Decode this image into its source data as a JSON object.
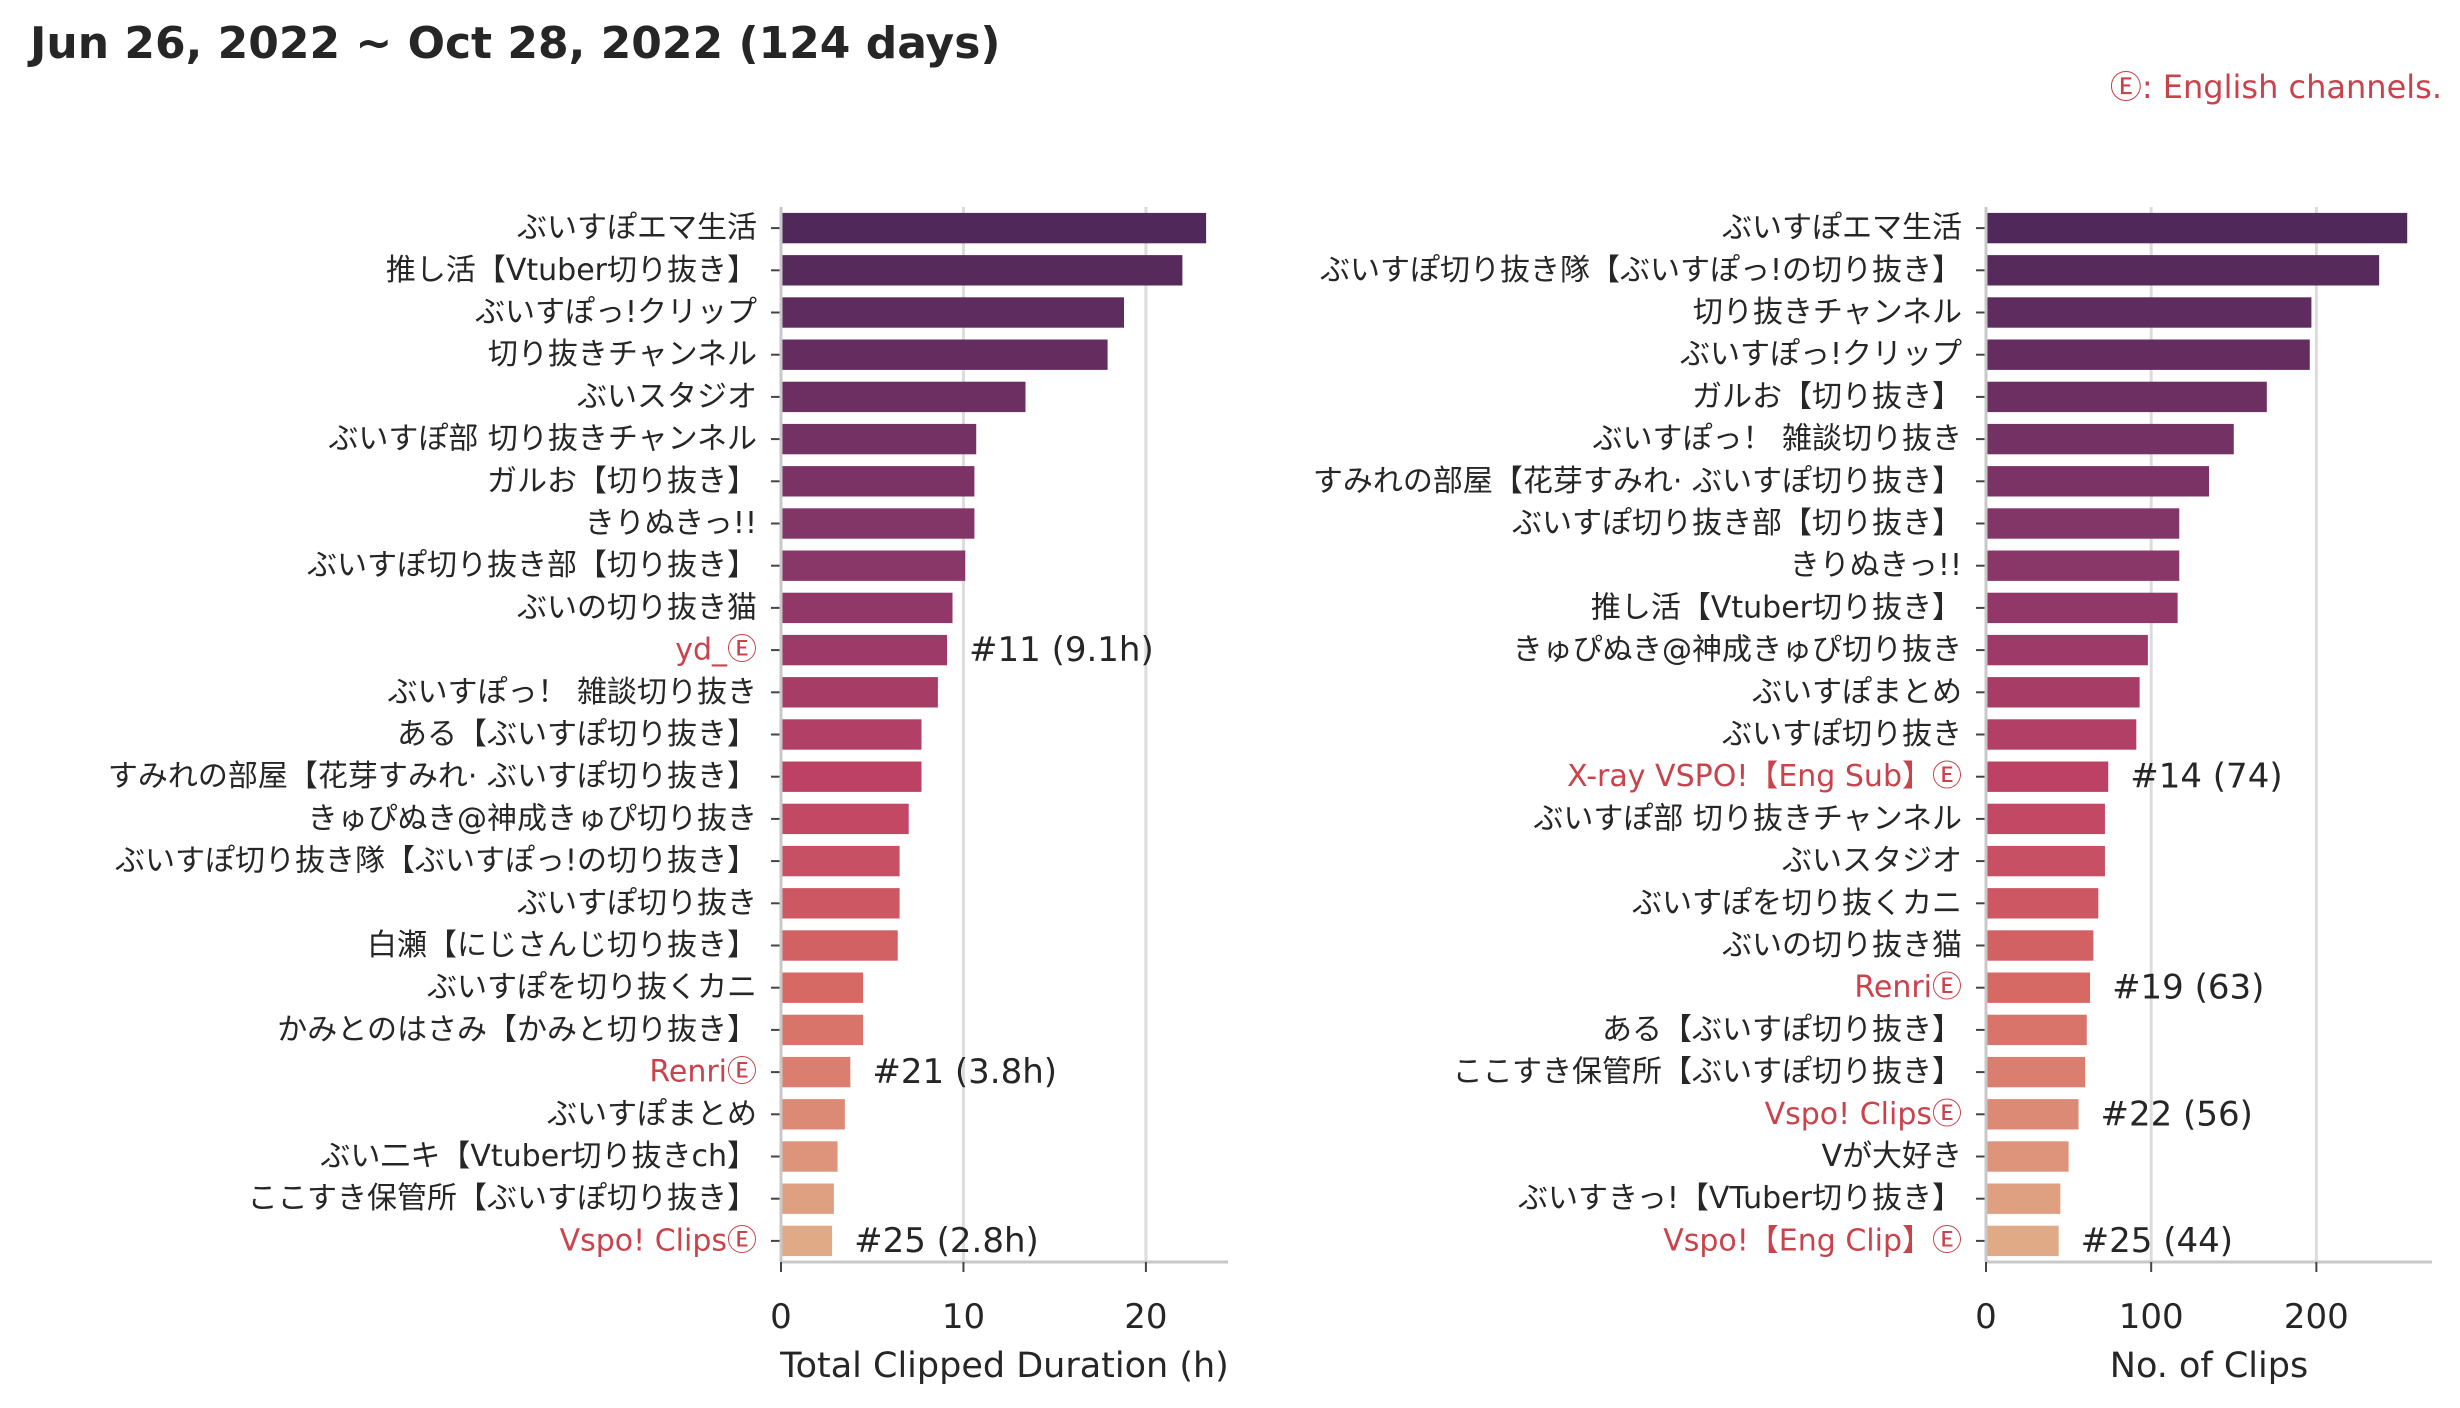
{
  "header": {
    "title": "Jun 26, 2022 ~ Oct 28, 2022 (124 days)",
    "note": "Ⓔ: English channels.",
    "english_color": "#c8434c"
  },
  "chart_data": [
    {
      "type": "bar",
      "orientation": "horizontal",
      "title": "",
      "xlabel": "Total Clipped Duration (h)",
      "ylabel": "",
      "xlim": [
        0,
        24.5
      ],
      "xticks": [
        0,
        10,
        20
      ],
      "grid": "vertical",
      "palette": "rocket",
      "categories": [
        {
          "label": "ぶいすぽエマ生活",
          "value": 23.3,
          "english": false
        },
        {
          "label": "推し活【Vtuber切り抜き】",
          "value": 22.0,
          "english": false
        },
        {
          "label": "ぶいすぽっ!クリップ",
          "value": 18.8,
          "english": false
        },
        {
          "label": "切り抜きチャンネル",
          "value": 17.9,
          "english": false
        },
        {
          "label": "ぶいスタジオ",
          "value": 13.4,
          "english": false
        },
        {
          "label": "ぶいすぽ部 切り抜きチャンネル",
          "value": 10.7,
          "english": false
        },
        {
          "label": "ガルお【切り抜き】",
          "value": 10.6,
          "english": false
        },
        {
          "label": "きりぬきっ!!",
          "value": 10.6,
          "english": false
        },
        {
          "label": "ぶいすぽ切り抜き部【切り抜き】",
          "value": 10.1,
          "english": false
        },
        {
          "label": "ぶいの切り抜き猫",
          "value": 9.4,
          "english": false
        },
        {
          "label": "yd_Ⓔ",
          "value": 9.1,
          "english": true,
          "annotation": "#11 (9.1h)"
        },
        {
          "label": "ぶいすぽっ！ 雑談切り抜き",
          "value": 8.6,
          "english": false
        },
        {
          "label": "ある【ぶいすぽ切り抜き】",
          "value": 7.7,
          "english": false
        },
        {
          "label": "すみれの部屋【花芽すみれ· ぶいすぽ切り抜き】",
          "value": 7.7,
          "english": false
        },
        {
          "label": "きゅぴぬき@神成きゅぴ切り抜き",
          "value": 7.0,
          "english": false
        },
        {
          "label": "ぶいすぽ切り抜き隊【ぶいすぽっ!の切り抜き】",
          "value": 6.5,
          "english": false
        },
        {
          "label": "ぶいすぽ切り抜き",
          "value": 6.5,
          "english": false
        },
        {
          "label": "白瀬【にじさんじ切り抜き】",
          "value": 6.4,
          "english": false
        },
        {
          "label": "ぶいすぽを切り抜くカニ",
          "value": 4.5,
          "english": false
        },
        {
          "label": "かみとのはさみ【かみと切り抜き】",
          "value": 4.5,
          "english": false
        },
        {
          "label": "RenriⒺ",
          "value": 3.8,
          "english": true,
          "annotation": "#21 (3.8h)"
        },
        {
          "label": "ぶいすぽまとめ",
          "value": 3.5,
          "english": false
        },
        {
          "label": "ぶい二キ【Vtuber切り抜きch】",
          "value": 3.1,
          "english": false
        },
        {
          "label": "ここすき保管所【ぶいすぽ切り抜き】",
          "value": 2.9,
          "english": false
        },
        {
          "label": "Vspo! ClipsⒺ",
          "value": 2.8,
          "english": true,
          "annotation": "#25 (2.8h)"
        }
      ]
    },
    {
      "type": "bar",
      "orientation": "horizontal",
      "title": "",
      "xlabel": "No. of Clips",
      "ylabel": "",
      "xlim": [
        0,
        270
      ],
      "xticks": [
        0,
        100,
        200
      ],
      "grid": "vertical",
      "palette": "rocket",
      "categories": [
        {
          "label": "ぶいすぽエマ生活",
          "value": 255,
          "english": false
        },
        {
          "label": "ぶいすぽ切り抜き隊【ぶいすぽっ!の切り抜き】",
          "value": 238,
          "english": false
        },
        {
          "label": "切り抜きチャンネル",
          "value": 197,
          "english": false
        },
        {
          "label": "ぶいすぽっ!クリップ",
          "value": 196,
          "english": false
        },
        {
          "label": "ガルお【切り抜き】",
          "value": 170,
          "english": false
        },
        {
          "label": "ぶいすぽっ！ 雑談切り抜き",
          "value": 150,
          "english": false
        },
        {
          "label": "すみれの部屋【花芽すみれ· ぶいすぽ切り抜き】",
          "value": 135,
          "english": false
        },
        {
          "label": "ぶいすぽ切り抜き部【切り抜き】",
          "value": 117,
          "english": false
        },
        {
          "label": "きりぬきっ!!",
          "value": 117,
          "english": false
        },
        {
          "label": "推し活【Vtuber切り抜き】",
          "value": 116,
          "english": false
        },
        {
          "label": "きゅぴぬき@神成きゅぴ切り抜き",
          "value": 98,
          "english": false
        },
        {
          "label": "ぶいすぽまとめ",
          "value": 93,
          "english": false
        },
        {
          "label": "ぶいすぽ切り抜き",
          "value": 91,
          "english": false
        },
        {
          "label": "X-ray VSPO!【Eng Sub】Ⓔ",
          "value": 74,
          "english": true,
          "annotation": "#14 (74)"
        },
        {
          "label": "ぶいすぽ部 切り抜きチャンネル",
          "value": 72,
          "english": false
        },
        {
          "label": "ぶいスタジオ",
          "value": 72,
          "english": false
        },
        {
          "label": "ぶいすぽを切り抜くカニ",
          "value": 68,
          "english": false
        },
        {
          "label": "ぶいの切り抜き猫",
          "value": 65,
          "english": false
        },
        {
          "label": "RenriⒺ",
          "value": 63,
          "english": true,
          "annotation": "#19 (63)"
        },
        {
          "label": "ある【ぶいすぽ切り抜き】",
          "value": 61,
          "english": false
        },
        {
          "label": "ここすき保管所【ぶいすぽ切り抜き】",
          "value": 60,
          "english": false
        },
        {
          "label": "Vspo! ClipsⒺ",
          "value": 56,
          "english": true,
          "annotation": "#22 (56)"
        },
        {
          "label": "Vが大好き",
          "value": 50,
          "english": false
        },
        {
          "label": "ぶいすきっ!【VTuber切り抜き】",
          "value": 45,
          "english": false
        },
        {
          "label": "Vspo!【Eng Clip】Ⓔ",
          "value": 44,
          "english": true,
          "annotation": "#25 (44)"
        }
      ]
    }
  ]
}
